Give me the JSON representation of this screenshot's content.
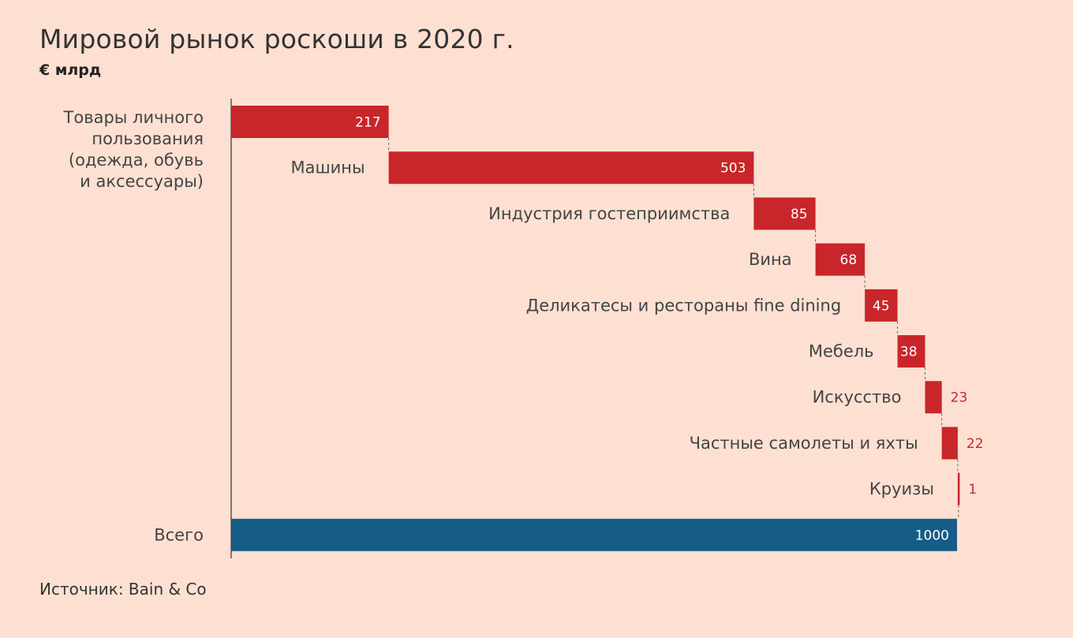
{
  "title": "Мировой рынок роскоши в 2020 г.",
  "subtitle": "€ млрд",
  "source": "Источник: Bain & Co",
  "colors": {
    "segment": "#c8262a",
    "total": "#155d87",
    "background": "#fde0d2"
  },
  "chart_data": {
    "type": "bar",
    "variant": "waterfall",
    "orientation": "horizontal",
    "categories": [
      "Товары личного пользования (одежда, обувь и аксессуары)",
      "Машины",
      "Индустрия гостеприимства",
      "Вина",
      "Деликатесы и рестораны fine dining",
      "Мебель",
      "Искусство",
      "Частные самолеты и яхты",
      "Круизы",
      "Всего"
    ],
    "label_lines": [
      [
        "Товары личного",
        "пользования",
        "(одежда, обувь",
        "и аксессуары)"
      ],
      [
        "Машины"
      ],
      [
        "Индустрия гостеприимства"
      ],
      [
        "Вина"
      ],
      [
        "Деликатесы и рестораны fine dining"
      ],
      [
        "Мебель"
      ],
      [
        "Искусство"
      ],
      [
        "Частные самолеты и яхты"
      ],
      [
        "Круизы"
      ],
      [
        "Всего"
      ]
    ],
    "values": [
      217,
      503,
      85,
      68,
      45,
      38,
      23,
      22,
      1,
      1000
    ],
    "value_labels": [
      "217",
      "503",
      "85",
      "68",
      "45",
      "38",
      "23",
      "22",
      "1",
      "1000"
    ],
    "total_index": 9,
    "xlim": [
      0,
      1000
    ],
    "grid": false
  }
}
